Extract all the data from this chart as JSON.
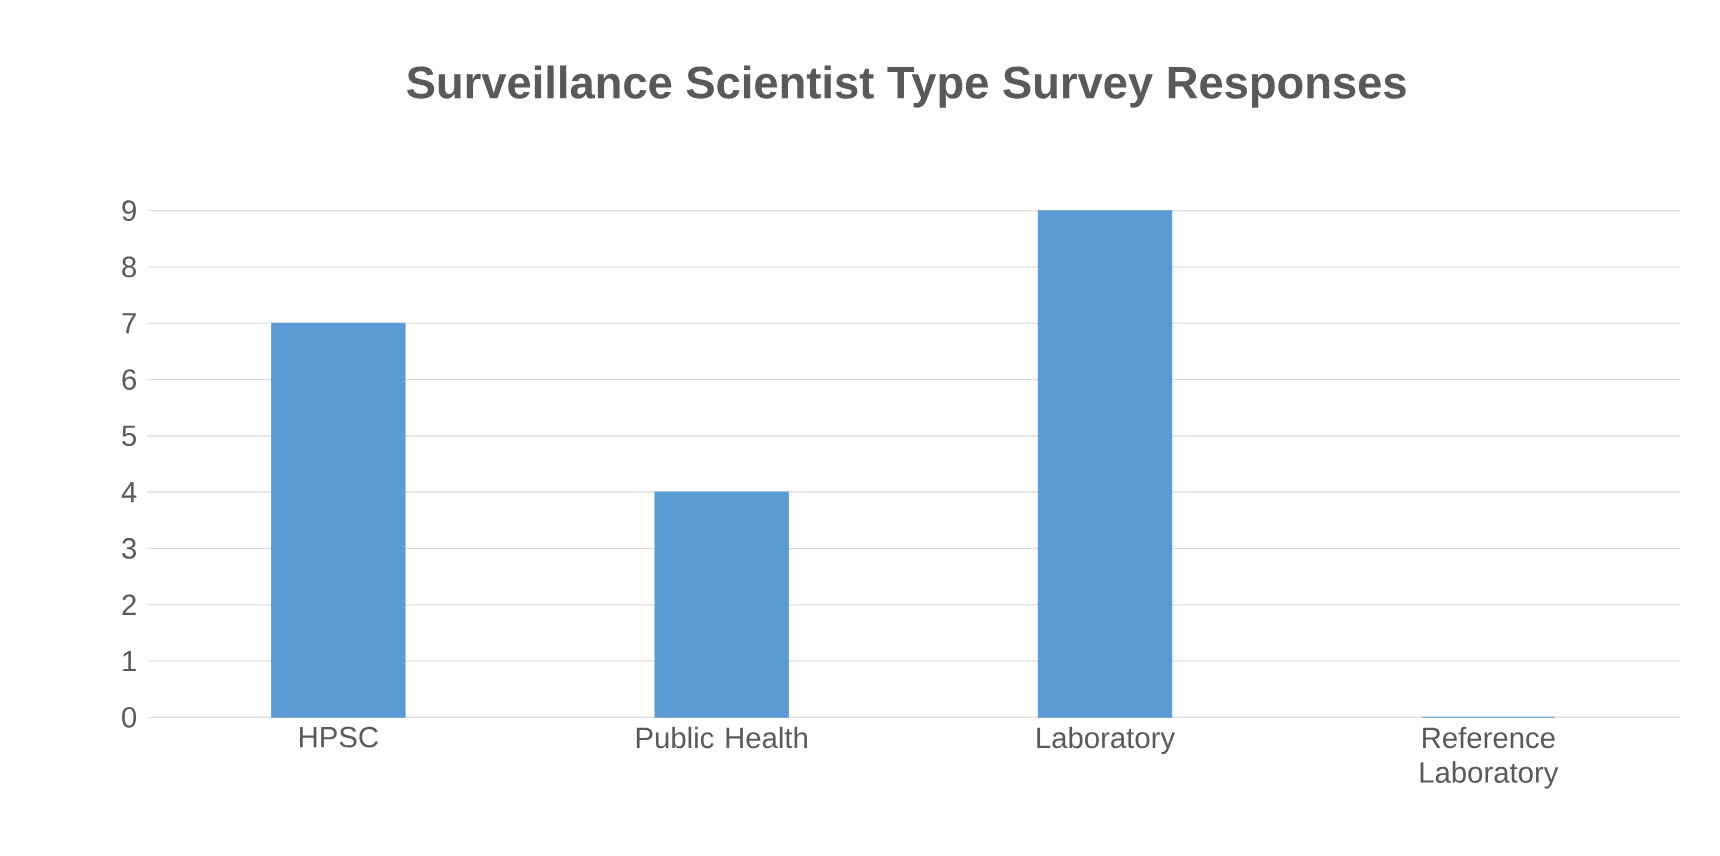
{
  "chart_data": {
    "type": "bar",
    "title": "Surveillance Scientist Type Survey Responses",
    "categories": [
      "HPSC",
      "Public Health",
      "Laboratory",
      "Reference Laboratory"
    ],
    "values": [
      7,
      4,
      9,
      0
    ],
    "color": "#5b9bd5",
    "ylim": [
      0,
      9
    ],
    "yticks": [
      0,
      1,
      2,
      3,
      4,
      5,
      6,
      7,
      8,
      9
    ],
    "grid": "y"
  }
}
